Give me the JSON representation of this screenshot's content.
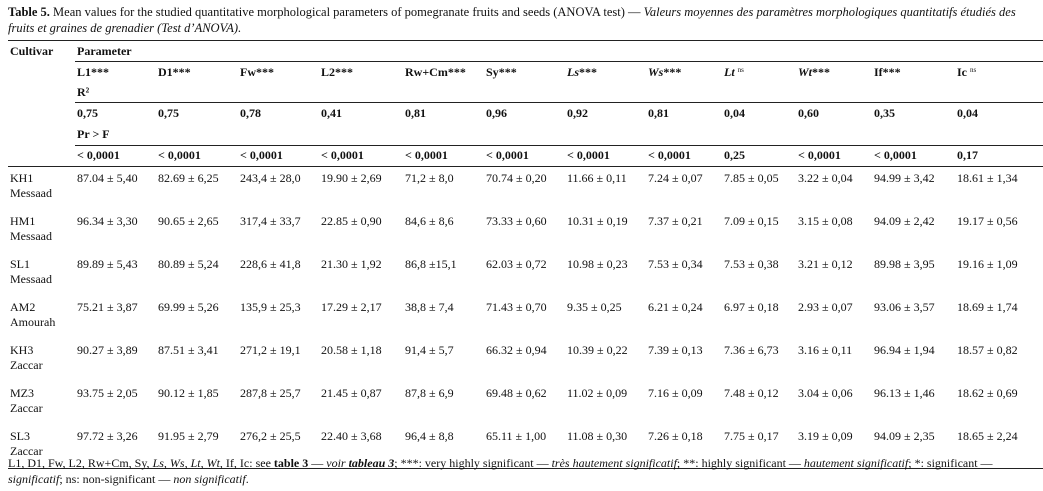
{
  "caption": {
    "label": "Table 5.",
    "text_en": "Mean values for the studied quantitative morphological parameters of pomegranate fruits and seeds (ANOVA test) —",
    "text_fr": "Valeurs moyennes des paramètres morphologiques quantitatifs étudiés des fruits et graines de grenadier (Test d’ANOVA)."
  },
  "table": {
    "cultivar_header": "Cultivar",
    "parameter_header": "Parameter",
    "parameters": [
      {
        "name": "L1",
        "sig": "***",
        "italic": false
      },
      {
        "name": "D1",
        "sig": "***",
        "italic": false
      },
      {
        "name": "Fw",
        "sig": "***",
        "italic": false
      },
      {
        "name": "L2",
        "sig": "***",
        "italic": false
      },
      {
        "name": "Rw+Cm",
        "sig": "***",
        "italic": false
      },
      {
        "name": "Sy",
        "sig": "***",
        "italic": false
      },
      {
        "name": "Ls",
        "sig": "***",
        "italic": true
      },
      {
        "name": "Ws",
        "sig": "***",
        "italic": true
      },
      {
        "name": "Lt",
        "sig": "ns",
        "italic": true
      },
      {
        "name": "Wt",
        "sig": "***",
        "italic": true
      },
      {
        "name": "If",
        "sig": "***",
        "italic": false
      },
      {
        "name": "Ic",
        "sig": "ns",
        "italic": false
      }
    ],
    "r2_label": "R²",
    "r2": [
      "0,75",
      "0,75",
      "0,78",
      "0,41",
      "0,81",
      "0,96",
      "0,92",
      "0,81",
      "0,04",
      "0,60",
      "0,35",
      "0,04"
    ],
    "p_label": "Pr > F",
    "p": [
      "< 0,0001",
      "< 0,0001",
      "< 0,0001",
      "< 0,0001",
      "< 0,0001",
      "< 0,0001",
      "< 0,0001",
      "< 0,0001",
      "0,25",
      "< 0,0001",
      "< 0,0001",
      "0,17"
    ],
    "rows": [
      {
        "cultivar": "KH1",
        "site": "Messaad",
        "values": [
          "87.04 ± 5,40",
          "82.69 ± 6,25",
          "243,4 ± 28,0",
          "19.90 ± 2,69",
          "71,2 ± 8,0",
          "70.74 ± 0,20",
          "11.66 ± 0,11",
          "7.24 ± 0,07",
          "7.85 ± 0,05",
          "3.22 ± 0,04",
          "94.99 ± 3,42",
          "18.61 ± 1,34"
        ]
      },
      {
        "cultivar": "HM1",
        "site": "Messaad",
        "values": [
          "96.34 ± 3,30",
          "90.65 ± 2,65",
          "317,4 ± 33,7",
          "22.85 ± 0,90",
          "84,6 ± 8,6",
          "73.33 ± 0,60",
          "10.31 ± 0,19",
          "7.37 ± 0,21",
          "7.09 ± 0,15",
          "3.15 ± 0,08",
          "94.09 ± 2,42",
          "19.17 ± 0,56"
        ]
      },
      {
        "cultivar": "SL1",
        "site": "Messaad",
        "values": [
          "89.89 ± 5,43",
          "80.89 ± 5,24",
          "228,6 ± 41,8",
          "21.30 ± 1,92",
          "86,8 ±15,1",
          "62.03 ± 0,72",
          "10.98 ± 0,23",
          "7.53 ± 0,34",
          "7.53 ± 0,38",
          "3.21 ± 0,12",
          "89.98 ± 3,95",
          "19.16 ± 1,09"
        ]
      },
      {
        "cultivar": "AM2",
        "site": "Amourah",
        "values": [
          "75.21 ± 3,87",
          "69.99 ± 5,26",
          "135,9 ± 25,3",
          "17.29 ± 2,17",
          "38,8 ± 7,4",
          "71.43 ± 0,70",
          "9.35 ± 0,25",
          "6.21 ± 0,24",
          "6.97 ± 0,18",
          "2.93 ± 0,07",
          "93.06 ± 3,57",
          "18.69 ± 1,74"
        ]
      },
      {
        "cultivar": "KH3",
        "site": "Zaccar",
        "values": [
          "90.27 ± 3,89",
          "87.51 ± 3,41",
          "271,2 ± 19,1",
          "20.58 ± 1,18",
          "91,4 ± 5,7",
          "66.32 ± 0,94",
          "10.39 ± 0,22",
          "7.39 ± 0,13",
          "7.36 ± 6,73",
          "3.16 ± 0,11",
          "96.94 ± 1,94",
          "18.57 ± 0,82"
        ]
      },
      {
        "cultivar": "MZ3",
        "site": "Zaccar",
        "values": [
          "93.75 ± 2,05",
          "90.12 ± 1,85",
          "287,8 ± 25,7",
          "21.45 ± 0,87",
          "87,8 ± 6,9",
          "69.48 ± 0,62",
          "11.02 ± 0,09",
          "7.16 ± 0,09",
          "7.48 ± 0,12",
          "3.04 ± 0,06",
          "96.13 ± 1,46",
          "18.62 ± 0,69"
        ]
      },
      {
        "cultivar": "SL3",
        "site": "Zaccar",
        "values": [
          "97.72 ± 3,26",
          "91.95 ± 2,79",
          "276,2 ± 25,5",
          "22.40 ± 3,68",
          "96,4 ± 8,8",
          "65.11 ± 1,00",
          "11.08 ± 0,30",
          "7.26 ± 0,18",
          "7.75 ± 0,17",
          "3.19 ± 0,09",
          "94.09 ± 2,35",
          "18.65 ± 2,24"
        ]
      }
    ]
  },
  "footnote": [
    "L1, D1, Fw, L2, Rw+Cm, Sy, ",
    "Ls, Ws, Lt, Wt",
    ", If, Ic: see ",
    "table 3",
    " — ",
    "voir ",
    "tableau 3",
    "; ***: very highly significant — ",
    "très hautement significatif",
    "; **: highly significant — ",
    "hautement significatif",
    "; *: significant — ",
    "significatif",
    "; ns: non-significant — ",
    "non significatif",
    "."
  ]
}
